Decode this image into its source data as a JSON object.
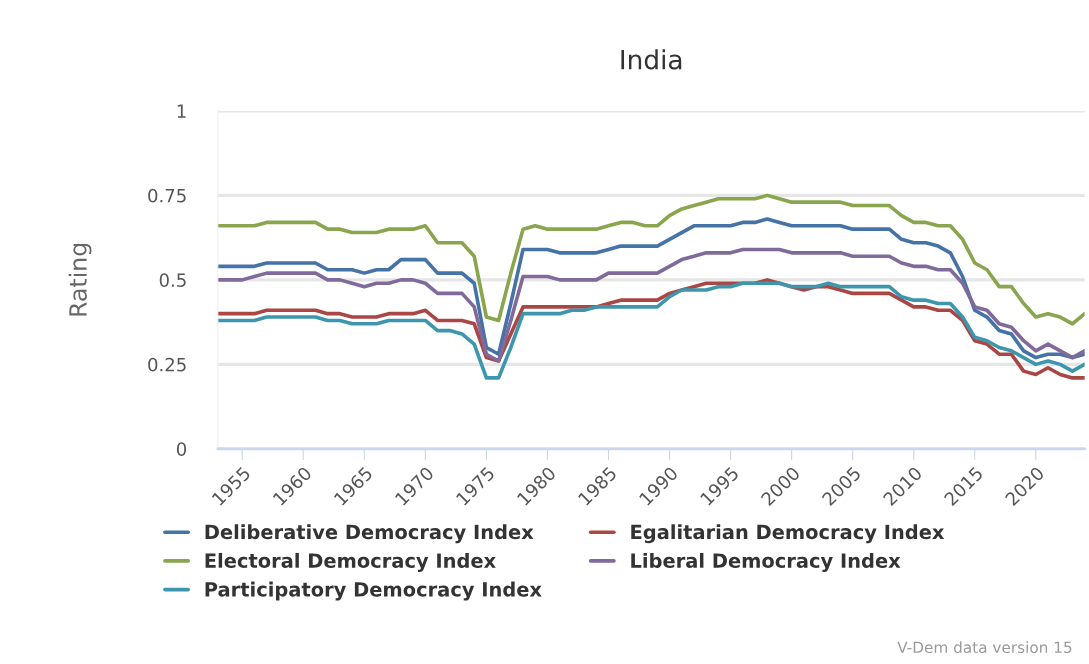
{
  "chart_data": {
    "type": "line",
    "title": "India",
    "ylabel": "Rating",
    "x": [
      1953,
      1954,
      1955,
      1956,
      1957,
      1958,
      1959,
      1960,
      1961,
      1962,
      1963,
      1964,
      1965,
      1966,
      1967,
      1968,
      1969,
      1970,
      1971,
      1972,
      1973,
      1974,
      1975,
      1976,
      1977,
      1978,
      1979,
      1980,
      1981,
      1982,
      1983,
      1984,
      1985,
      1986,
      1987,
      1988,
      1989,
      1990,
      1991,
      1992,
      1993,
      1994,
      1995,
      1996,
      1997,
      1998,
      1999,
      2000,
      2001,
      2002,
      2003,
      2004,
      2005,
      2006,
      2007,
      2008,
      2009,
      2010,
      2011,
      2012,
      2013,
      2014,
      2015,
      2016,
      2017,
      2018,
      2019,
      2020,
      2021,
      2022,
      2023,
      2024
    ],
    "xlim": [
      1953,
      2024
    ],
    "xticks": [
      1955,
      1960,
      1965,
      1970,
      1975,
      1980,
      1985,
      1990,
      1995,
      2000,
      2005,
      2010,
      2015,
      2020
    ],
    "ylim": [
      0,
      1
    ],
    "yticks": [
      0,
      0.25,
      0.5,
      0.75,
      1
    ],
    "series": [
      {
        "name": "Deliberative Democracy Index",
        "color": "#4572a7",
        "values": [
          0.54,
          0.54,
          0.54,
          0.54,
          0.55,
          0.55,
          0.55,
          0.55,
          0.55,
          0.53,
          0.53,
          0.53,
          0.52,
          0.53,
          0.53,
          0.56,
          0.56,
          0.56,
          0.52,
          0.52,
          0.52,
          0.49,
          0.3,
          0.28,
          0.43,
          0.59,
          0.59,
          0.59,
          0.58,
          0.58,
          0.58,
          0.58,
          0.59,
          0.6,
          0.6,
          0.6,
          0.6,
          0.62,
          0.64,
          0.66,
          0.66,
          0.66,
          0.66,
          0.67,
          0.67,
          0.68,
          0.67,
          0.66,
          0.66,
          0.66,
          0.66,
          0.66,
          0.65,
          0.65,
          0.65,
          0.65,
          0.62,
          0.61,
          0.61,
          0.6,
          0.58,
          0.51,
          0.41,
          0.39,
          0.35,
          0.34,
          0.29,
          0.27,
          0.28,
          0.28,
          0.27,
          0.28
        ]
      },
      {
        "name": "Egalitarian Democracy Index",
        "color": "#aa4643",
        "values": [
          0.4,
          0.4,
          0.4,
          0.4,
          0.41,
          0.41,
          0.41,
          0.41,
          0.41,
          0.4,
          0.4,
          0.39,
          0.39,
          0.39,
          0.4,
          0.4,
          0.4,
          0.41,
          0.38,
          0.38,
          0.38,
          0.37,
          0.27,
          0.26,
          0.34,
          0.42,
          0.42,
          0.42,
          0.42,
          0.42,
          0.42,
          0.42,
          0.43,
          0.44,
          0.44,
          0.44,
          0.44,
          0.46,
          0.47,
          0.48,
          0.49,
          0.49,
          0.49,
          0.49,
          0.49,
          0.5,
          0.49,
          0.48,
          0.47,
          0.48,
          0.48,
          0.47,
          0.46,
          0.46,
          0.46,
          0.46,
          0.44,
          0.42,
          0.42,
          0.41,
          0.41,
          0.38,
          0.32,
          0.31,
          0.28,
          0.28,
          0.23,
          0.22,
          0.24,
          0.22,
          0.21,
          0.21
        ]
      },
      {
        "name": "Electoral Democracy Index",
        "color": "#89a54e",
        "values": [
          0.66,
          0.66,
          0.66,
          0.66,
          0.67,
          0.67,
          0.67,
          0.67,
          0.67,
          0.65,
          0.65,
          0.64,
          0.64,
          0.64,
          0.65,
          0.65,
          0.65,
          0.66,
          0.61,
          0.61,
          0.61,
          0.57,
          0.39,
          0.38,
          0.52,
          0.65,
          0.66,
          0.65,
          0.65,
          0.65,
          0.65,
          0.65,
          0.66,
          0.67,
          0.67,
          0.66,
          0.66,
          0.69,
          0.71,
          0.72,
          0.73,
          0.74,
          0.74,
          0.74,
          0.74,
          0.75,
          0.74,
          0.73,
          0.73,
          0.73,
          0.73,
          0.73,
          0.72,
          0.72,
          0.72,
          0.72,
          0.69,
          0.67,
          0.67,
          0.66,
          0.66,
          0.62,
          0.55,
          0.53,
          0.48,
          0.48,
          0.43,
          0.39,
          0.4,
          0.39,
          0.37,
          0.4
        ]
      },
      {
        "name": "Liberal Democracy Index",
        "color": "#80699b",
        "values": [
          0.5,
          0.5,
          0.5,
          0.51,
          0.52,
          0.52,
          0.52,
          0.52,
          0.52,
          0.5,
          0.5,
          0.49,
          0.48,
          0.49,
          0.49,
          0.5,
          0.5,
          0.49,
          0.46,
          0.46,
          0.46,
          0.42,
          0.28,
          0.26,
          0.38,
          0.51,
          0.51,
          0.51,
          0.5,
          0.5,
          0.5,
          0.5,
          0.52,
          0.52,
          0.52,
          0.52,
          0.52,
          0.54,
          0.56,
          0.57,
          0.58,
          0.58,
          0.58,
          0.59,
          0.59,
          0.59,
          0.59,
          0.58,
          0.58,
          0.58,
          0.58,
          0.58,
          0.57,
          0.57,
          0.57,
          0.57,
          0.55,
          0.54,
          0.54,
          0.53,
          0.53,
          0.49,
          0.42,
          0.41,
          0.37,
          0.36,
          0.32,
          0.29,
          0.31,
          0.29,
          0.27,
          0.29
        ]
      },
      {
        "name": "Participatory Democracy Index",
        "color": "#3d96ae",
        "values": [
          0.38,
          0.38,
          0.38,
          0.38,
          0.39,
          0.39,
          0.39,
          0.39,
          0.39,
          0.38,
          0.38,
          0.37,
          0.37,
          0.37,
          0.38,
          0.38,
          0.38,
          0.38,
          0.35,
          0.35,
          0.34,
          0.31,
          0.21,
          0.21,
          0.3,
          0.4,
          0.4,
          0.4,
          0.4,
          0.41,
          0.41,
          0.42,
          0.42,
          0.42,
          0.42,
          0.42,
          0.42,
          0.45,
          0.47,
          0.47,
          0.47,
          0.48,
          0.48,
          0.49,
          0.49,
          0.49,
          0.49,
          0.48,
          0.48,
          0.48,
          0.49,
          0.48,
          0.48,
          0.48,
          0.48,
          0.48,
          0.45,
          0.44,
          0.44,
          0.43,
          0.43,
          0.39,
          0.33,
          0.32,
          0.3,
          0.29,
          0.27,
          0.25,
          0.26,
          0.25,
          0.23,
          0.25
        ]
      }
    ],
    "grid": "y",
    "legend": "bottom",
    "marker": "none",
    "line_style": "solid",
    "annotations": [
      "V-Dem data version 15"
    ]
  }
}
